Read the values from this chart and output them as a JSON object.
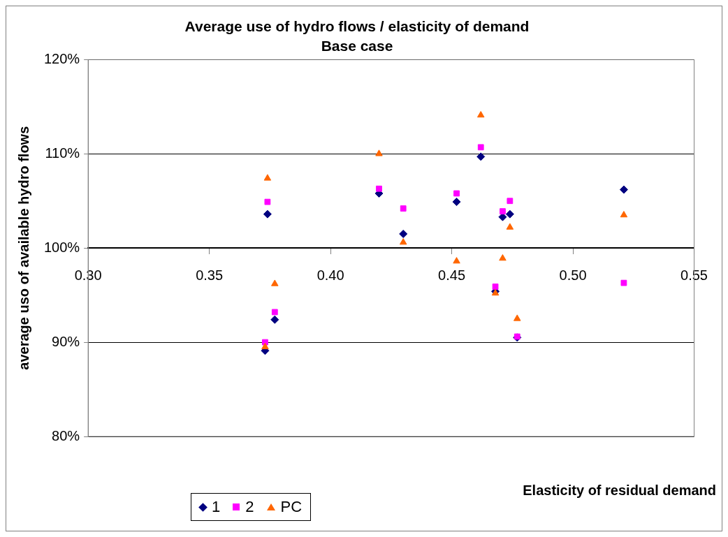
{
  "chart_data": {
    "type": "scatter",
    "title": "Average use of hydro flows / elasticity of demand",
    "subtitle": "Base case",
    "xlabel": "Elasticity of residual demand",
    "ylabel": "average uso of available hydro flows",
    "x": [
      0.373,
      0.374,
      0.377,
      0.42,
      0.43,
      0.452,
      0.462,
      0.468,
      0.471,
      0.474,
      0.477,
      0.521
    ],
    "series": [
      {
        "name": "1",
        "color": "#000080",
        "marker": "diamond",
        "values": [
          89.1,
          103.6,
          92.4,
          105.8,
          101.5,
          104.9,
          109.7,
          95.4,
          103.3,
          103.6,
          90.5,
          106.2
        ]
      },
      {
        "name": "2",
        "color": "#ff00ff",
        "marker": "square",
        "values": [
          90.0,
          104.9,
          93.2,
          106.3,
          104.2,
          105.8,
          110.7,
          95.9,
          103.9,
          105.0,
          90.6,
          96.3
        ]
      },
      {
        "name": "PC",
        "color": "#ff6600",
        "marker": "triangle",
        "values": [
          89.5,
          107.4,
          96.2,
          110.0,
          100.6,
          98.6,
          114.1,
          95.2,
          98.9,
          102.2,
          92.5,
          103.5
        ]
      }
    ],
    "xlim": [
      0.3,
      0.55
    ],
    "xticks": [
      {
        "value": 0.3,
        "label": "0.30"
      },
      {
        "value": 0.35,
        "label": "0.35"
      },
      {
        "value": 0.4,
        "label": "0.40"
      },
      {
        "value": 0.45,
        "label": "0.45"
      },
      {
        "value": 0.5,
        "label": "0.50"
      },
      {
        "value": 0.55,
        "label": "0.55"
      }
    ],
    "ylim": [
      80,
      120
    ],
    "yticks": [
      {
        "value": 80,
        "label": "80%"
      },
      {
        "value": 90,
        "label": "90%"
      },
      {
        "value": 100,
        "label": "100%"
      },
      {
        "value": 110,
        "label": "110%"
      },
      {
        "value": 120,
        "label": "120%"
      }
    ],
    "grid": "y",
    "legend": "bottom left"
  }
}
